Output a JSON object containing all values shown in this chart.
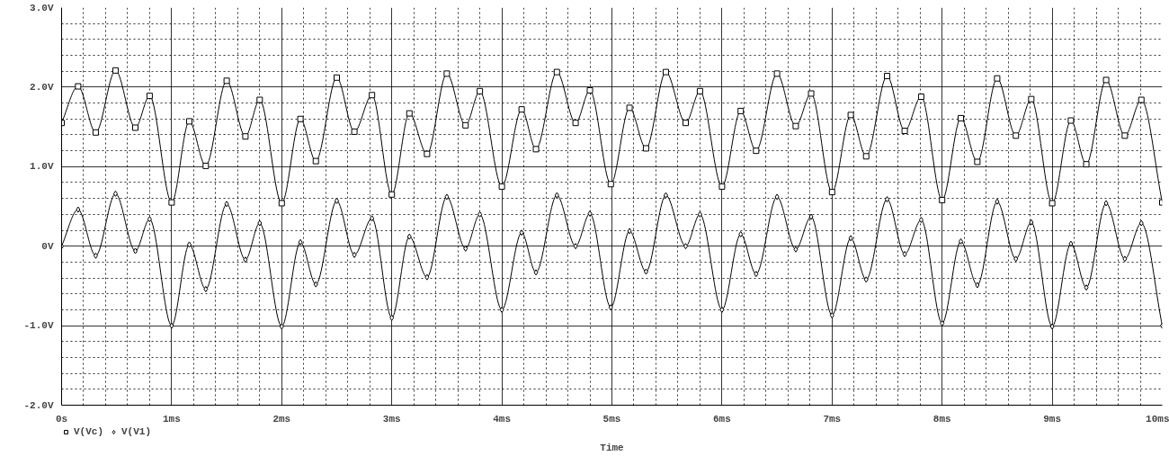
{
  "chart_data": {
    "type": "line",
    "xlabel": "Time",
    "x": [
      0,
      0.15,
      0.31,
      0.49,
      0.67,
      0.8,
      1.0,
      1.16,
      1.31,
      1.5,
      1.67,
      1.8,
      2.0,
      2.17,
      2.31,
      2.5,
      2.66,
      2.82,
      3.0,
      3.16,
      3.32,
      3.5,
      3.67,
      3.8,
      4.0,
      4.18,
      4.31,
      4.5,
      4.67,
      4.8,
      4.99,
      5.16,
      5.31,
      5.49,
      5.67,
      5.8,
      6.0,
      6.17,
      6.31,
      6.5,
      6.67,
      6.81,
      7.0,
      7.17,
      7.31,
      7.5,
      7.66,
      7.81,
      8.0,
      8.17,
      8.32,
      8.5,
      8.67,
      8.81,
      9.0,
      9.17,
      9.31,
      9.49,
      9.66,
      9.81,
      10.0
    ],
    "series": [
      {
        "name": "V(Vc)",
        "color": "#000000",
        "marker": "square",
        "values": [
          1.55,
          2.01,
          1.43,
          2.21,
          1.49,
          1.89,
          0.55,
          1.57,
          1.01,
          2.08,
          1.38,
          1.84,
          0.54,
          1.6,
          1.07,
          2.12,
          1.44,
          1.9,
          0.65,
          1.67,
          1.16,
          2.17,
          1.52,
          1.95,
          0.75,
          1.72,
          1.22,
          2.19,
          1.55,
          1.96,
          0.78,
          1.74,
          1.23,
          2.19,
          1.55,
          1.95,
          0.75,
          1.7,
          1.2,
          2.17,
          1.51,
          1.92,
          0.68,
          1.65,
          1.13,
          2.14,
          1.45,
          1.88,
          0.58,
          1.61,
          1.06,
          2.11,
          1.39,
          1.85,
          0.54,
          1.58,
          1.03,
          2.09,
          1.39,
          1.84,
          0.55
        ]
      },
      {
        "name": "V(V1)",
        "color": "#000000",
        "marker": "diamond",
        "values": [
          0,
          0.46,
          -0.12,
          0.66,
          -0.06,
          0.34,
          -1.0,
          0.02,
          -0.54,
          0.53,
          -0.17,
          0.29,
          -1.01,
          0.05,
          -0.48,
          0.57,
          -0.11,
          0.35,
          -0.9,
          0.12,
          -0.39,
          0.62,
          -0.03,
          0.4,
          -0.8,
          0.17,
          -0.33,
          0.64,
          0.0,
          0.41,
          -0.77,
          0.19,
          -0.32,
          0.64,
          0.0,
          0.4,
          -0.8,
          0.15,
          -0.35,
          0.62,
          -0.04,
          0.37,
          -0.87,
          0.1,
          -0.42,
          0.59,
          -0.1,
          0.33,
          -0.97,
          0.06,
          -0.49,
          0.56,
          -0.16,
          0.3,
          -1.01,
          0.03,
          -0.52,
          0.54,
          -0.16,
          0.29,
          -1.0
        ]
      }
    ],
    "xlim": [
      0,
      10
    ],
    "xticks": [
      {
        "value": 0,
        "label": "0s"
      },
      {
        "value": 1,
        "label": "1ms"
      },
      {
        "value": 2,
        "label": "2ms"
      },
      {
        "value": 3,
        "label": "3ms"
      },
      {
        "value": 4,
        "label": "4ms"
      },
      {
        "value": 5,
        "label": "5ms"
      },
      {
        "value": 6,
        "label": "6ms"
      },
      {
        "value": 7,
        "label": "7ms"
      },
      {
        "value": 8,
        "label": "8ms"
      },
      {
        "value": 9,
        "label": "9ms"
      },
      {
        "value": 10,
        "label": "10ms"
      }
    ],
    "ylim": [
      -2,
      3
    ],
    "yticks": [
      {
        "value": -2,
        "label": "-2.0V"
      },
      {
        "value": -1,
        "label": "-1.0V"
      },
      {
        "value": 0,
        "label": "0V"
      },
      {
        "value": 1,
        "label": "1.0V"
      },
      {
        "value": 2,
        "label": "2.0V"
      },
      {
        "value": 3,
        "label": "3.0V"
      }
    ],
    "grid": true,
    "legend": "bottom left",
    "line_style": "solid"
  }
}
